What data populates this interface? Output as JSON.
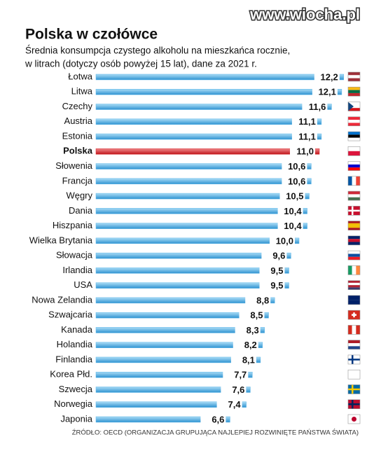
{
  "chart_data": {
    "type": "bar",
    "orientation": "horizontal",
    "title": "Polska w czołówce",
    "subtitle": [
      "Średnia konsumpcja czystego alkoholu na mieszkańca rocznie,",
      "w litrach (dotyczy osób powyżej 15 lat), dane za 2021 r."
    ],
    "watermark": "www.wiocha.pl",
    "source": "ŹRÓDŁO: OECD (ORGANIZACJA GRUPUJĄCA NAJLEPIEJ ROZWINIĘTE PAŃSTWA ŚWIATA)",
    "categories": [
      "Łotwa",
      "Litwa",
      "Czechy",
      "Austria",
      "Estonia",
      "Polska",
      "Słowenia",
      "Francja",
      "Węgry",
      "Dania",
      "Hiszpania",
      "Wielka Brytania",
      "Słowacja",
      "Irlandia",
      "USA",
      "Nowa Zelandia",
      "Szwajcaria",
      "Kanada",
      "Holandia",
      "Finlandia",
      "Korea Płd.",
      "Szwecja",
      "Norwegia",
      "Japonia"
    ],
    "values": [
      12.2,
      12.1,
      11.6,
      11.1,
      11.1,
      11.0,
      10.6,
      10.6,
      10.5,
      10.4,
      10.4,
      10.0,
      9.6,
      9.5,
      9.5,
      8.8,
      8.5,
      8.3,
      8.2,
      8.1,
      7.7,
      7.6,
      7.4,
      6.6
    ],
    "value_labels": [
      "12,2",
      "12,1",
      "11,6",
      "11,1",
      "11,1",
      "11,0",
      "10,6",
      "10,6",
      "10,5",
      "10,4",
      "10,4",
      "10,0",
      "9,6",
      "9,5",
      "9,5",
      "8,8",
      "8,5",
      "8,3",
      "8,2",
      "8,1",
      "7,7",
      "7,6",
      "7,4",
      "6,6"
    ],
    "color": "#5cb6e8",
    "highlight": "Polska",
    "highlight_color": "#d8262c"
  }
}
